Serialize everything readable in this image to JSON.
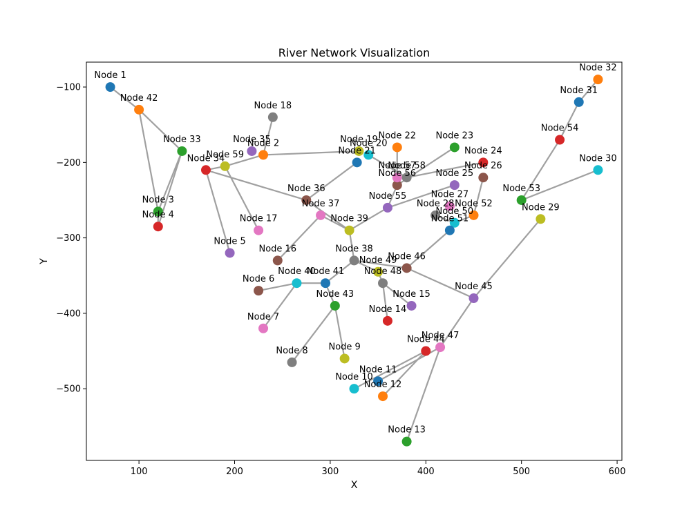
{
  "chart_data": {
    "type": "scatter",
    "title": "River Network Visualization",
    "xlabel": "X",
    "ylabel": "Y",
    "xlim": [
      45,
      605
    ],
    "ylim": [
      -595,
      -67
    ],
    "xticks": [
      100,
      200,
      300,
      400,
      500,
      600
    ],
    "yticks": [
      -100,
      -200,
      -300,
      -400,
      -500
    ],
    "grid": false,
    "palette": [
      "#1f77b4",
      "#ff7f0e",
      "#2ca02c",
      "#d62728",
      "#9467bd",
      "#8c564b",
      "#e377c2",
      "#7f7f7f",
      "#bcbd22",
      "#17becf"
    ],
    "nodes": [
      {
        "id": 1,
        "label": "Node 1",
        "x": 70,
        "y": -100
      },
      {
        "id": 2,
        "label": "Node 2",
        "x": 230,
        "y": -190
      },
      {
        "id": 3,
        "label": "Node 3",
        "x": 120,
        "y": -265
      },
      {
        "id": 4,
        "label": "Node 4",
        "x": 120,
        "y": -285
      },
      {
        "id": 5,
        "label": "Node 5",
        "x": 195,
        "y": -320
      },
      {
        "id": 6,
        "label": "Node 6",
        "x": 225,
        "y": -370
      },
      {
        "id": 7,
        "label": "Node 7",
        "x": 230,
        "y": -420
      },
      {
        "id": 8,
        "label": "Node 8",
        "x": 260,
        "y": -465
      },
      {
        "id": 9,
        "label": "Node 9",
        "x": 315,
        "y": -460
      },
      {
        "id": 10,
        "label": "Node 10",
        "x": 325,
        "y": -500
      },
      {
        "id": 11,
        "label": "Node 11",
        "x": 350,
        "y": -490
      },
      {
        "id": 12,
        "label": "Node 12",
        "x": 355,
        "y": -510
      },
      {
        "id": 13,
        "label": "Node 13",
        "x": 380,
        "y": -570
      },
      {
        "id": 14,
        "label": "Node 14",
        "x": 360,
        "y": -410
      },
      {
        "id": 15,
        "label": "Node 15",
        "x": 385,
        "y": -390
      },
      {
        "id": 16,
        "label": "Node 16",
        "x": 245,
        "y": -330
      },
      {
        "id": 17,
        "label": "Node 17",
        "x": 225,
        "y": -290
      },
      {
        "id": 18,
        "label": "Node 18",
        "x": 240,
        "y": -140
      },
      {
        "id": 19,
        "label": "Node 19",
        "x": 330,
        "y": -185
      },
      {
        "id": 20,
        "label": "Node 20",
        "x": 340,
        "y": -190
      },
      {
        "id": 21,
        "label": "Node 21",
        "x": 328,
        "y": -200
      },
      {
        "id": 22,
        "label": "Node 22",
        "x": 370,
        "y": -180
      },
      {
        "id": 23,
        "label": "Node 23",
        "x": 430,
        "y": -180
      },
      {
        "id": 24,
        "label": "Node 24",
        "x": 460,
        "y": -200
      },
      {
        "id": 25,
        "label": "Node 25",
        "x": 430,
        "y": -230
      },
      {
        "id": 26,
        "label": "Node 26",
        "x": 460,
        "y": -220
      },
      {
        "id": 27,
        "label": "Node 27",
        "x": 425,
        "y": -258
      },
      {
        "id": 28,
        "label": "Node 28",
        "x": 410,
        "y": -270
      },
      {
        "id": 29,
        "label": "Node 29",
        "x": 520,
        "y": -275
      },
      {
        "id": 30,
        "label": "Node 30",
        "x": 580,
        "y": -210
      },
      {
        "id": 31,
        "label": "Node 31",
        "x": 560,
        "y": -120
      },
      {
        "id": 32,
        "label": "Node 32",
        "x": 580,
        "y": -90
      },
      {
        "id": 33,
        "label": "Node 33",
        "x": 145,
        "y": -185
      },
      {
        "id": 34,
        "label": "Node 34",
        "x": 170,
        "y": -210
      },
      {
        "id": 35,
        "label": "Node 35",
        "x": 218,
        "y": -185
      },
      {
        "id": 36,
        "label": "Node 36",
        "x": 275,
        "y": -250
      },
      {
        "id": 37,
        "label": "Node 37",
        "x": 290,
        "y": -270
      },
      {
        "id": 38,
        "label": "Node 38",
        "x": 325,
        "y": -330
      },
      {
        "id": 39,
        "label": "Node 39",
        "x": 320,
        "y": -290
      },
      {
        "id": 40,
        "label": "Node 40",
        "x": 265,
        "y": -360
      },
      {
        "id": 41,
        "label": "Node 41",
        "x": 295,
        "y": -360
      },
      {
        "id": 42,
        "label": "Node 42",
        "x": 100,
        "y": -130
      },
      {
        "id": 43,
        "label": "Node 43",
        "x": 305,
        "y": -390
      },
      {
        "id": 44,
        "label": "Node 44",
        "x": 400,
        "y": -450
      },
      {
        "id": 45,
        "label": "Node 45",
        "x": 450,
        "y": -380
      },
      {
        "id": 46,
        "label": "Node 46",
        "x": 380,
        "y": -340
      },
      {
        "id": 47,
        "label": "Node 47",
        "x": 415,
        "y": -445
      },
      {
        "id": 48,
        "label": "Node 48",
        "x": 355,
        "y": -360
      },
      {
        "id": 49,
        "label": "Node 49",
        "x": 350,
        "y": -345
      },
      {
        "id": 50,
        "label": "Node 50",
        "x": 430,
        "y": -280
      },
      {
        "id": 51,
        "label": "Node 51",
        "x": 425,
        "y": -290
      },
      {
        "id": 52,
        "label": "Node 52",
        "x": 450,
        "y": -270
      },
      {
        "id": 53,
        "label": "Node 53",
        "x": 500,
        "y": -250
      },
      {
        "id": 54,
        "label": "Node 54",
        "x": 540,
        "y": -170
      },
      {
        "id": 55,
        "label": "Node 55",
        "x": 360,
        "y": -260
      },
      {
        "id": 56,
        "label": "Node 56",
        "x": 370,
        "y": -230
      },
      {
        "id": 57,
        "label": "Node 57",
        "x": 370,
        "y": -220
      },
      {
        "id": 58,
        "label": "Node 58",
        "x": 380,
        "y": -220
      },
      {
        "id": 59,
        "label": "Node 59",
        "x": 190,
        "y": -205
      }
    ],
    "edges": [
      [
        1,
        42
      ],
      [
        42,
        33
      ],
      [
        42,
        3
      ],
      [
        33,
        3
      ],
      [
        33,
        4
      ],
      [
        3,
        4
      ],
      [
        34,
        59
      ],
      [
        59,
        2
      ],
      [
        2,
        18
      ],
      [
        2,
        19
      ],
      [
        34,
        5
      ],
      [
        59,
        17
      ],
      [
        34,
        36
      ],
      [
        36,
        21
      ],
      [
        36,
        39
      ],
      [
        39,
        37
      ],
      [
        37,
        16
      ],
      [
        39,
        55
      ],
      [
        55,
        25
      ],
      [
        55,
        56
      ],
      [
        56,
        22
      ],
      [
        56,
        23
      ],
      [
        20,
        58
      ],
      [
        58,
        24
      ],
      [
        39,
        38
      ],
      [
        38,
        49
      ],
      [
        49,
        48
      ],
      [
        48,
        14
      ],
      [
        48,
        15
      ],
      [
        38,
        41
      ],
      [
        41,
        40
      ],
      [
        40,
        6
      ],
      [
        40,
        7
      ],
      [
        41,
        43
      ],
      [
        43,
        8
      ],
      [
        43,
        9
      ],
      [
        38,
        46
      ],
      [
        46,
        51
      ],
      [
        46,
        45
      ],
      [
        45,
        29
      ],
      [
        45,
        47
      ],
      [
        47,
        13
      ],
      [
        47,
        11
      ],
      [
        44,
        12
      ],
      [
        44,
        10
      ],
      [
        28,
        50
      ],
      [
        50,
        52
      ],
      [
        52,
        26
      ],
      [
        53,
        54
      ],
      [
        54,
        31
      ],
      [
        31,
        32
      ],
      [
        53,
        30
      ]
    ]
  }
}
